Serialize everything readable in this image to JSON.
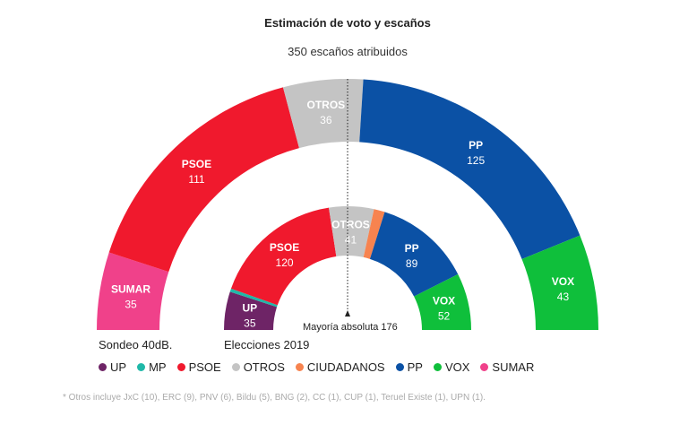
{
  "chart_data": {
    "type": "parliament-donut",
    "title": "Estimación de voto y escaños",
    "subtitle": "350 escaños atribuidos",
    "total_seats": 350,
    "majority_label": "Mayoría absoluta 176",
    "majority": 176,
    "charts": [
      {
        "name": "Sondeo 40dB.",
        "series": [
          {
            "party": "SUMAR",
            "seats": 35,
            "color": "#f0418a"
          },
          {
            "party": "PSOE",
            "seats": 111,
            "color": "#f0192d"
          },
          {
            "party": "OTROS",
            "seats": 36,
            "color": "#c4c4c4"
          },
          {
            "party": "PP",
            "seats": 125,
            "color": "#0b51a5"
          },
          {
            "party": "VOX",
            "seats": 43,
            "color": "#0fbf3b"
          }
        ]
      },
      {
        "name": "Elecciones 2019",
        "series": [
          {
            "party": "UP",
            "seats": 35,
            "color": "#6e2466"
          },
          {
            "party": "MP",
            "seats": 3,
            "color": "#1fb8a8",
            "hide_label": true
          },
          {
            "party": "PSOE",
            "seats": 120,
            "color": "#f0192d"
          },
          {
            "party": "OTROS",
            "seats": 41,
            "color": "#c4c4c4"
          },
          {
            "party": "CIUDADANOS",
            "seats": 10,
            "color": "#f7834f",
            "hide_label": true
          },
          {
            "party": "PP",
            "seats": 89,
            "color": "#0b51a5"
          },
          {
            "party": "VOX",
            "seats": 52,
            "color": "#0fbf3b"
          }
        ]
      }
    ],
    "legend": [
      {
        "label": "UP",
        "color": "#6e2466"
      },
      {
        "label": "MP",
        "color": "#1fb8a8"
      },
      {
        "label": "PSOE",
        "color": "#f0192d"
      },
      {
        "label": "OTROS",
        "color": "#c4c4c4"
      },
      {
        "label": "CIUDADANOS",
        "color": "#f7834f"
      },
      {
        "label": "PP",
        "color": "#0b51a5"
      },
      {
        "label": "VOX",
        "color": "#0fbf3b"
      },
      {
        "label": "SUMAR",
        "color": "#f0418a"
      }
    ],
    "note": "* Otros incluye JxC (10), ERC (9), PNV (6), Bildu (5), BNG (2), CC (1), CUP (1), Teruel Existe (1), UPN (1)."
  }
}
